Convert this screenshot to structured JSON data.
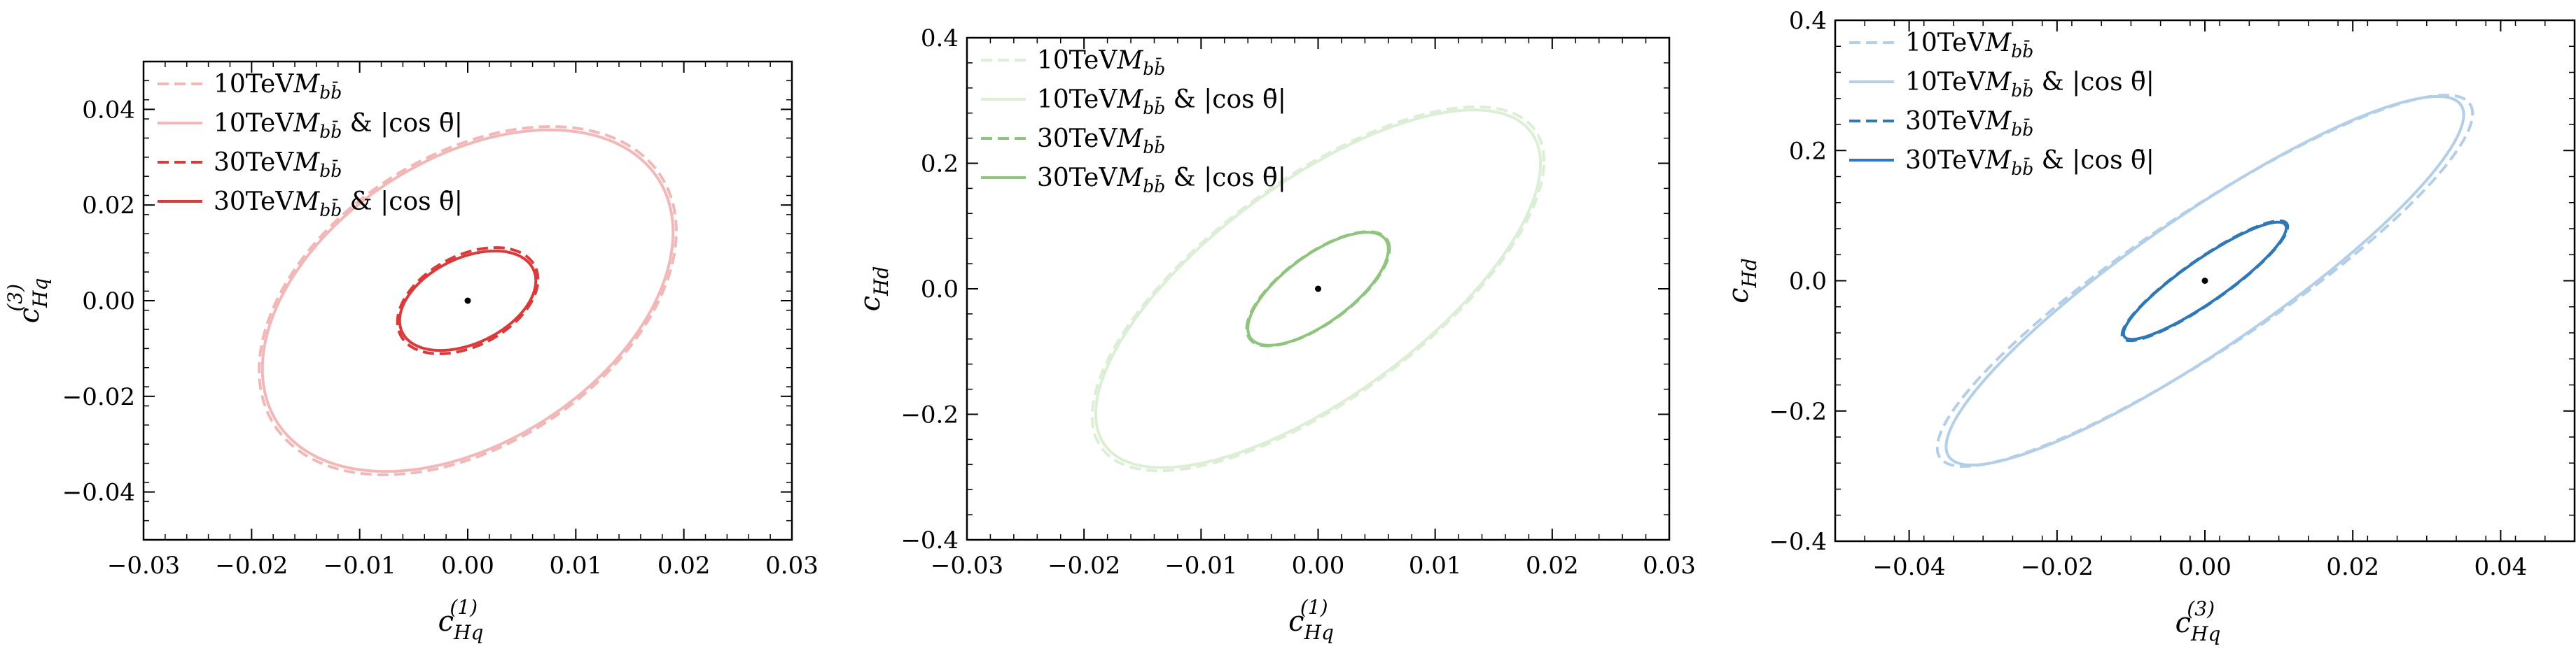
{
  "chart_data": [
    {
      "type": "scatter",
      "title": "",
      "xlabel": {
        "main": "c",
        "sub": "Hq",
        "sup": "(1)"
      },
      "ylabel": {
        "main": "c",
        "sub": "Hq",
        "sup": "(3)"
      },
      "xlim": [
        -0.03,
        0.03
      ],
      "ylim": [
        -0.05,
        0.05
      ],
      "xticks": [
        "−0.03",
        "−0.02",
        "−0.01",
        "0.00",
        "0.01",
        "0.02",
        "0.03"
      ],
      "xtick_values": [
        -0.03,
        -0.02,
        -0.01,
        0.0,
        0.01,
        0.02,
        0.03
      ],
      "yticks": [
        "−0.04",
        "−0.02",
        "0.00",
        "0.02",
        "0.04"
      ],
      "ytick_values": [
        -0.04,
        -0.02,
        0.0,
        0.02,
        0.04
      ],
      "x_minor_step": 0.002,
      "y_minor_step": 0.004,
      "legend_position": "upper-left",
      "center_point": [
        0.0,
        0.0
      ],
      "series": [
        {
          "name": "10TeV M_{bb̄}",
          "legend": {
            "pre": "10TeV",
            "mass": "M",
            "sub": "bb̄",
            "post": ""
          },
          "color": "#f2b8b8",
          "dashed": true,
          "ellipse": {
            "half_width_x": 0.0193,
            "half_height_y": 0.0364,
            "corr": 0.4
          }
        },
        {
          "name": "10TeV M_{bb̄} & |cos θ̄|",
          "legend": {
            "pre": "10TeV",
            "mass": "M",
            "sub": "bb̄",
            "post": " & |cos θ̄|"
          },
          "color": "#f2b8b8",
          "dashed": false,
          "ellipse": {
            "half_width_x": 0.019,
            "half_height_y": 0.0357,
            "corr": 0.4
          }
        },
        {
          "name": "30TeV M_{bb̄}",
          "legend": {
            "pre": "30TeV",
            "mass": "M",
            "sub": "bb̄",
            "post": ""
          },
          "color": "#d93a3a",
          "dashed": true,
          "ellipse": {
            "half_width_x": 0.0065,
            "half_height_y": 0.0111,
            "corr": 0.4
          }
        },
        {
          "name": "30TeV M_{bb̄} & |cos θ̄|",
          "legend": {
            "pre": "30TeV",
            "mass": "M",
            "sub": "bb̄",
            "post": " & |cos θ̄|"
          },
          "color": "#d93a3a",
          "dashed": false,
          "ellipse": {
            "half_width_x": 0.0063,
            "half_height_y": 0.0104,
            "corr": 0.4
          }
        }
      ]
    },
    {
      "type": "scatter",
      "title": "",
      "xlabel": {
        "main": "c",
        "sub": "Hq",
        "sup": "(1)"
      },
      "ylabel": {
        "main": "c",
        "sub": "Hd",
        "sup": ""
      },
      "xlim": [
        -0.03,
        0.03
      ],
      "ylim": [
        -0.4,
        0.4
      ],
      "xticks": [
        "−0.03",
        "−0.02",
        "−0.01",
        "0.00",
        "0.01",
        "0.02",
        "0.03"
      ],
      "xtick_values": [
        -0.03,
        -0.02,
        -0.01,
        0.0,
        0.01,
        0.02,
        0.03
      ],
      "yticks": [
        "−0.4",
        "−0.2",
        "0.0",
        "0.2",
        "0.4"
      ],
      "ytick_values": [
        -0.4,
        -0.2,
        0.0,
        0.2,
        0.4
      ],
      "x_minor_step": 0.002,
      "y_minor_step": 0.04,
      "legend_position": "upper-left",
      "center_point": [
        0.0,
        0.0
      ],
      "series": [
        {
          "name": "10TeV M_{bb̄}",
          "legend": {
            "pre": "10TeV",
            "mass": "M",
            "sub": "bb̄",
            "post": ""
          },
          "color": "#dcefd6",
          "dashed": true,
          "ellipse": {
            "half_width_x": 0.0193,
            "half_height_y": 0.29,
            "corr": 0.7
          }
        },
        {
          "name": "10TeV M_{bb̄} & |cos θ̄|",
          "legend": {
            "pre": "10TeV",
            "mass": "M",
            "sub": "bb̄",
            "post": " & |cos θ̄|"
          },
          "color": "#dcefd6",
          "dashed": false,
          "ellipse": {
            "half_width_x": 0.019,
            "half_height_y": 0.285,
            "corr": 0.7
          }
        },
        {
          "name": "30TeV M_{bb̄}",
          "legend": {
            "pre": "30TeV",
            "mass": "M",
            "sub": "bb̄",
            "post": ""
          },
          "color": "#8fc47e",
          "dashed": true,
          "ellipse": {
            "half_width_x": 0.0061,
            "half_height_y": 0.091,
            "corr": 0.7
          }
        },
        {
          "name": "30TeV M_{bb̄} & |cos θ̄|",
          "legend": {
            "pre": "30TeV",
            "mass": "M",
            "sub": "bb̄",
            "post": " & |cos θ̄|"
          },
          "color": "#8fc47e",
          "dashed": false,
          "ellipse": {
            "half_width_x": 0.006,
            "half_height_y": 0.09,
            "corr": 0.7
          }
        }
      ]
    },
    {
      "type": "scatter",
      "title": "",
      "xlabel": {
        "main": "c",
        "sub": "Hq",
        "sup": "(3)"
      },
      "ylabel": {
        "main": "c",
        "sub": "Hd",
        "sup": ""
      },
      "xlim": [
        -0.05,
        0.05
      ],
      "ylim": [
        -0.4,
        0.4
      ],
      "xticks": [
        "−0.04",
        "−0.02",
        "0.00",
        "0.02",
        "0.04"
      ],
      "xtick_values": [
        -0.04,
        -0.02,
        0.0,
        0.02,
        0.04
      ],
      "yticks": [
        "−0.4",
        "−0.2",
        "0.0",
        "0.2",
        "0.4"
      ],
      "ytick_values": [
        -0.4,
        -0.2,
        0.0,
        0.2,
        0.4
      ],
      "x_minor_step": 0.004,
      "y_minor_step": 0.04,
      "legend_position": "upper-left",
      "center_point": [
        0.0,
        0.0
      ],
      "series": [
        {
          "name": "10TeV M_{bb̄}",
          "legend": {
            "pre": "10TeV",
            "mass": "M",
            "sub": "bb̄",
            "post": ""
          },
          "color": "#b3cfe8",
          "dashed": true,
          "ellipse": {
            "half_width_x": 0.0362,
            "half_height_y": 0.285,
            "corr": 0.9
          }
        },
        {
          "name": "10TeV M_{bb̄} & |cos θ̄|",
          "legend": {
            "pre": "10TeV",
            "mass": "M",
            "sub": "bb̄",
            "post": " & |cos θ̄|"
          },
          "color": "#b3cfe8",
          "dashed": false,
          "ellipse": {
            "half_width_x": 0.035,
            "half_height_y": 0.283,
            "corr": 0.9
          }
        },
        {
          "name": "30TeV M_{bb̄}",
          "legend": {
            "pre": "30TeV",
            "mass": "M",
            "sub": "bb̄",
            "post": ""
          },
          "color": "#2f78b8",
          "dashed": true,
          "ellipse": {
            "half_width_x": 0.0112,
            "half_height_y": 0.092,
            "corr": 0.9
          }
        },
        {
          "name": "30TeV M_{bb̄} & |cos θ̄|",
          "legend": {
            "pre": "30TeV",
            "mass": "M",
            "sub": "bb̄",
            "post": " & |cos θ̄|"
          },
          "color": "#2f78b8",
          "dashed": false,
          "ellipse": {
            "half_width_x": 0.011,
            "half_height_y": 0.09,
            "corr": 0.9
          }
        }
      ]
    }
  ]
}
